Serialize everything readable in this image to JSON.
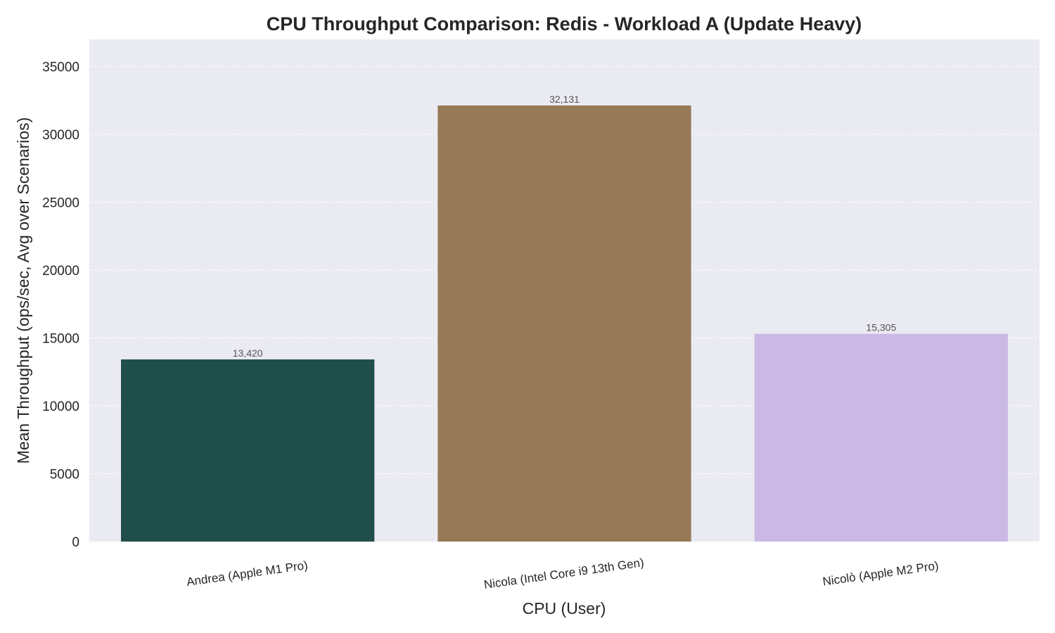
{
  "chart_data": {
    "type": "bar",
    "title": "CPU Throughput Comparison: Redis - Workload A (Update Heavy)",
    "xlabel": "CPU (User)",
    "ylabel": "Mean Throughput (ops/sec, Avg over Scenarios)",
    "categories": [
      "Andrea (Apple M1 Pro)",
      "Nicola (Intel Core i9 13th Gen)",
      "Nicolò (Apple M2 Pro)"
    ],
    "values": [
      13420,
      32131,
      15305
    ],
    "data_labels": [
      "13,420",
      "32,131",
      "15,305"
    ],
    "colors": [
      "#204e4a",
      "#967956",
      "#cbb9e5"
    ],
    "ylim": [
      0,
      37000
    ],
    "yticks": [
      0,
      5000,
      10000,
      15000,
      20000,
      25000,
      30000,
      35000
    ],
    "ytick_labels": [
      "0",
      "5000",
      "10000",
      "15000",
      "20000",
      "25000",
      "30000",
      "35000"
    ],
    "grid": true,
    "grid_axis": "y",
    "plot_background": "#eaeaf2"
  }
}
